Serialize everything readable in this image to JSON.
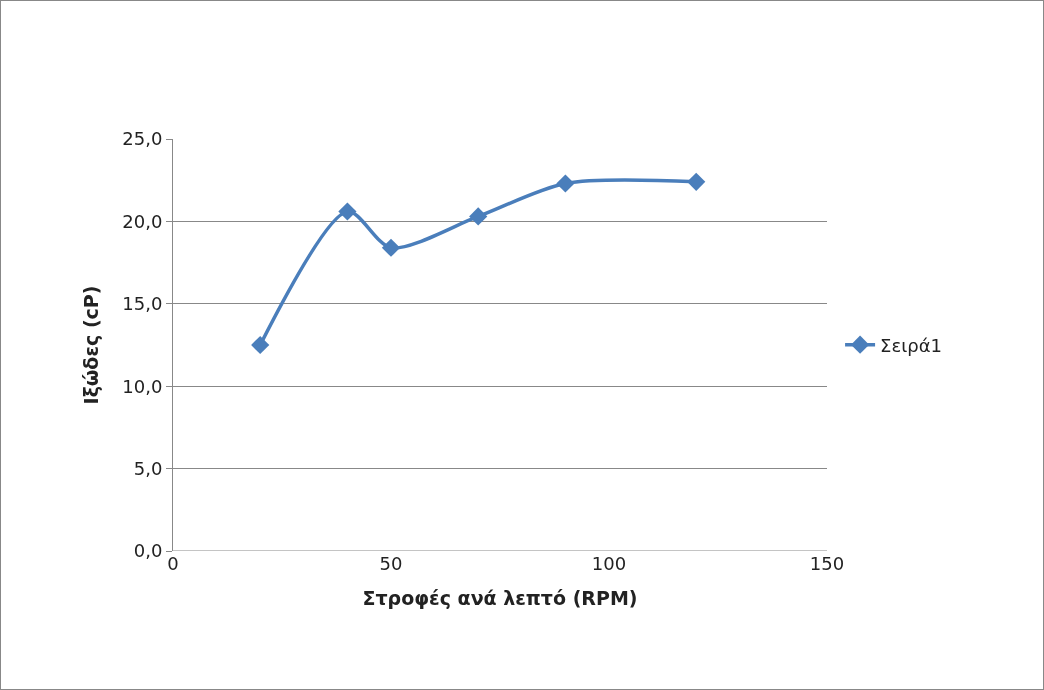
{
  "chart_data": {
    "type": "line",
    "xlabel": "Στροφές ανά λεπτό (RPM)",
    "ylabel": "Ιξώδες (cP)",
    "x": [
      20,
      40,
      50,
      70,
      90,
      120
    ],
    "series": [
      {
        "name": "Σειρά1",
        "color": "#4a7ebb",
        "values": [
          12.5,
          20.6,
          18.4,
          20.3,
          22.3,
          22.4
        ]
      }
    ],
    "xlim": [
      0,
      150
    ],
    "xticks": [
      0,
      50,
      100,
      150
    ],
    "ylim": [
      0,
      25
    ],
    "yticks": [
      {
        "value": 0,
        "label": "0,0"
      },
      {
        "value": 5,
        "label": "5,0"
      },
      {
        "value": 10,
        "label": "10,0"
      },
      {
        "value": 15,
        "label": "15,0"
      },
      {
        "value": 20,
        "label": "20,0"
      },
      {
        "value": 25,
        "label": "25,0"
      }
    ],
    "grid": "y",
    "legend": "right",
    "marker": "diamond",
    "line_style": "solid"
  }
}
